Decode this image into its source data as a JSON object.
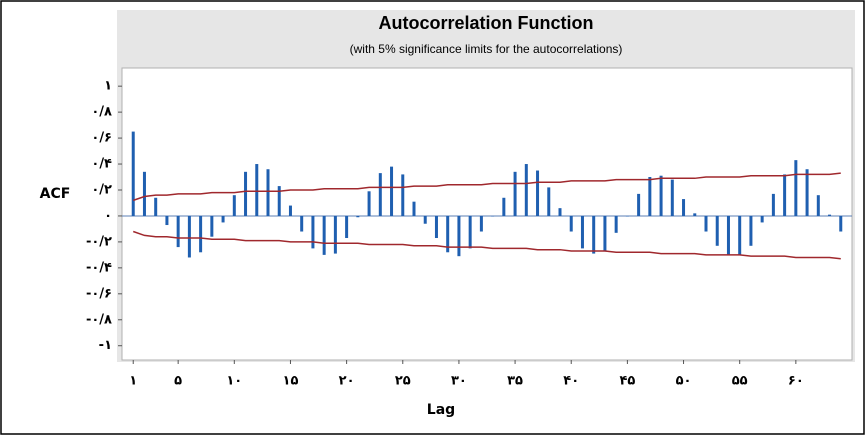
{
  "chart_data": {
    "type": "bar",
    "title": "Autocorrelation Function",
    "subtitle": "(with 5% significance limits for the autocorrelations)",
    "ylabel": "ACF",
    "xlabel": "Lag",
    "x": [
      1,
      2,
      3,
      4,
      5,
      6,
      7,
      8,
      9,
      10,
      11,
      12,
      13,
      14,
      15,
      16,
      17,
      18,
      19,
      20,
      21,
      22,
      23,
      24,
      25,
      26,
      27,
      28,
      29,
      30,
      31,
      32,
      33,
      34,
      35,
      36,
      37,
      38,
      39,
      40,
      41,
      42,
      43,
      44,
      45,
      46,
      47,
      48,
      49,
      50,
      51,
      52,
      53,
      54,
      55,
      56,
      57,
      58,
      59,
      60,
      61,
      62,
      63,
      64
    ],
    "values": [
      0.65,
      0.34,
      0.14,
      -0.07,
      -0.24,
      -0.32,
      -0.28,
      -0.16,
      -0.05,
      0.16,
      0.34,
      0.4,
      0.36,
      0.23,
      0.08,
      -0.12,
      -0.25,
      -0.3,
      -0.29,
      -0.17,
      -0.01,
      0.19,
      0.33,
      0.38,
      0.32,
      0.11,
      -0.06,
      -0.17,
      -0.28,
      -0.31,
      -0.25,
      -0.12,
      0.0,
      0.14,
      0.34,
      0.4,
      0.35,
      0.22,
      0.06,
      -0.12,
      -0.25,
      -0.29,
      -0.27,
      -0.13,
      0.0,
      0.17,
      0.3,
      0.31,
      0.28,
      0.13,
      0.02,
      -0.12,
      -0.23,
      -0.3,
      -0.3,
      -0.23,
      -0.05,
      0.17,
      0.32,
      0.43,
      0.36,
      0.16,
      0.01,
      -0.12
    ],
    "color": "#1f5fb0",
    "limits": {
      "color": "#a0282d",
      "upper": [
        0.12,
        0.15,
        0.16,
        0.16,
        0.17,
        0.17,
        0.17,
        0.18,
        0.18,
        0.18,
        0.19,
        0.19,
        0.19,
        0.19,
        0.2,
        0.2,
        0.2,
        0.21,
        0.21,
        0.21,
        0.21,
        0.22,
        0.22,
        0.22,
        0.22,
        0.23,
        0.23,
        0.23,
        0.24,
        0.24,
        0.24,
        0.24,
        0.25,
        0.25,
        0.25,
        0.25,
        0.26,
        0.26,
        0.26,
        0.27,
        0.27,
        0.27,
        0.27,
        0.28,
        0.28,
        0.28,
        0.28,
        0.29,
        0.29,
        0.29,
        0.29,
        0.3,
        0.3,
        0.3,
        0.3,
        0.31,
        0.31,
        0.31,
        0.31,
        0.32,
        0.32,
        0.32,
        0.32,
        0.33
      ],
      "lower": [
        -0.12,
        -0.15,
        -0.16,
        -0.16,
        -0.17,
        -0.17,
        -0.17,
        -0.18,
        -0.18,
        -0.18,
        -0.19,
        -0.19,
        -0.19,
        -0.19,
        -0.2,
        -0.2,
        -0.2,
        -0.21,
        -0.21,
        -0.21,
        -0.21,
        -0.22,
        -0.22,
        -0.22,
        -0.22,
        -0.23,
        -0.23,
        -0.23,
        -0.24,
        -0.24,
        -0.24,
        -0.24,
        -0.25,
        -0.25,
        -0.25,
        -0.25,
        -0.26,
        -0.26,
        -0.26,
        -0.27,
        -0.27,
        -0.27,
        -0.27,
        -0.28,
        -0.28,
        -0.28,
        -0.28,
        -0.29,
        -0.29,
        -0.29,
        -0.29,
        -0.3,
        -0.3,
        -0.3,
        -0.3,
        -0.31,
        -0.31,
        -0.31,
        -0.31,
        -0.32,
        -0.32,
        -0.32,
        -0.32,
        -0.33
      ]
    },
    "xlim": [
      0,
      65
    ],
    "ylim": [
      -1.11,
      1.14
    ],
    "yticks": [
      {
        "value": 1,
        "label": "١"
      },
      {
        "value": 0.8,
        "label": "٠/٨"
      },
      {
        "value": 0.6,
        "label": "٠/۶"
      },
      {
        "value": 0.4,
        "label": "٠/۴"
      },
      {
        "value": 0.2,
        "label": "٠/٢"
      },
      {
        "value": 0,
        "label": "٠"
      },
      {
        "value": -0.2,
        "label": "-٠/٢"
      },
      {
        "value": -0.4,
        "label": "-٠/۴"
      },
      {
        "value": -0.6,
        "label": "-٠/۶"
      },
      {
        "value": -0.8,
        "label": "-٠/٨"
      },
      {
        "value": -1,
        "label": "-١"
      }
    ],
    "xticks": [
      {
        "value": 1,
        "label": "١"
      },
      {
        "value": 5,
        "label": "۵"
      },
      {
        "value": 10,
        "label": "١٠"
      },
      {
        "value": 15,
        "label": "١۵"
      },
      {
        "value": 20,
        "label": "٢٠"
      },
      {
        "value": 25,
        "label": "٢۵"
      },
      {
        "value": 30,
        "label": "٣٠"
      },
      {
        "value": 35,
        "label": "٣۵"
      },
      {
        "value": 40,
        "label": "۴٠"
      },
      {
        "value": 45,
        "label": "۴۵"
      },
      {
        "value": 50,
        "label": "۵٠"
      },
      {
        "value": 55,
        "label": "۵۵"
      },
      {
        "value": 60,
        "label": "۶٠"
      }
    ]
  }
}
